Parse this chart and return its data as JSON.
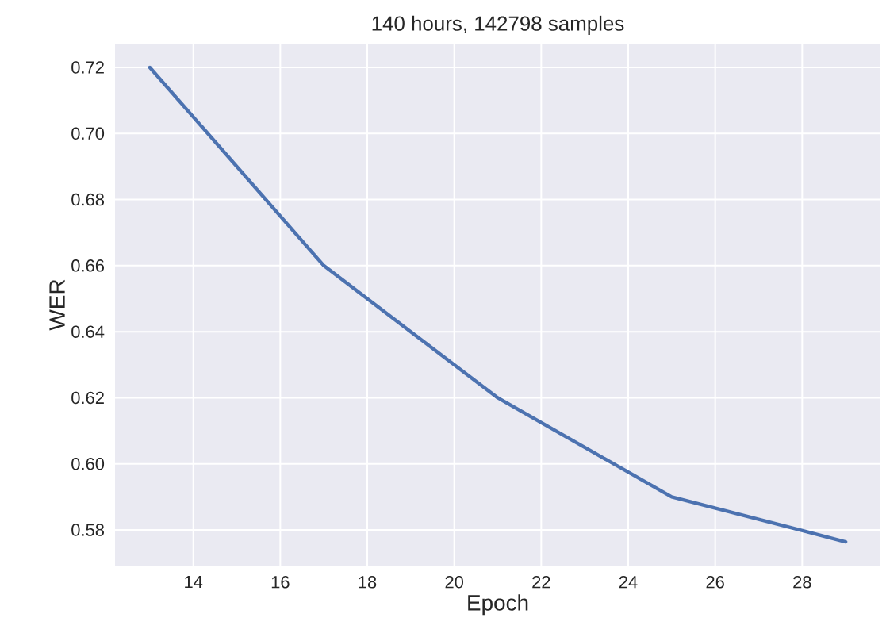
{
  "chart_data": {
    "type": "line",
    "title": "140 hours, 142798 samples",
    "xlabel": "Epoch",
    "ylabel": "WER",
    "x": [
      13,
      17,
      21,
      25,
      29
    ],
    "series": [
      {
        "color": "#4c72b0",
        "values": [
          0.72,
          0.66,
          0.62,
          0.59,
          0.5764
        ]
      }
    ],
    "xlim": [
      12.2,
      29.8
    ],
    "ylim": [
      0.5692,
      0.7272
    ],
    "xticks": [
      14,
      16,
      18,
      20,
      22,
      24,
      26,
      28
    ],
    "yticks": [
      {
        "value": 0.58,
        "label": "0.58"
      },
      {
        "value": 0.6,
        "label": "0.60"
      },
      {
        "value": 0.62,
        "label": "0.62"
      },
      {
        "value": 0.64,
        "label": "0.64"
      },
      {
        "value": 0.66,
        "label": "0.66"
      },
      {
        "value": 0.68,
        "label": "0.68"
      },
      {
        "value": 0.7,
        "label": "0.70"
      },
      {
        "value": 0.72,
        "label": "0.72"
      }
    ],
    "grid": true,
    "marker": "none",
    "line_style": "solid"
  }
}
